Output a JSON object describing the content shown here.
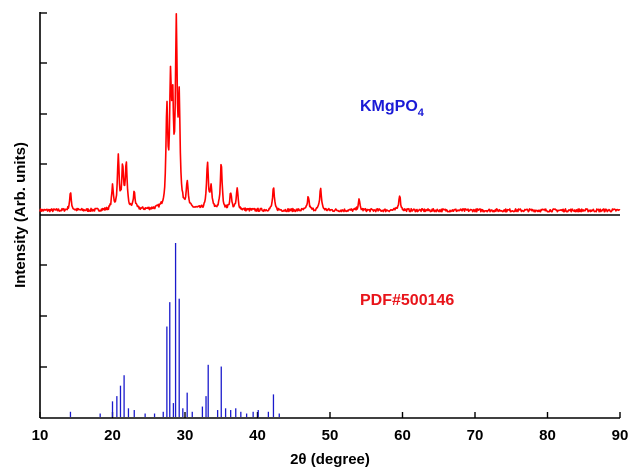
{
  "chart_data": {
    "type": "line",
    "xlabel": "2θ (degree)",
    "ylabel": "Intensity (Arb. units)",
    "xlim": [
      10,
      90
    ],
    "x_ticks": [
      "10",
      "20",
      "30",
      "40",
      "50",
      "60",
      "70",
      "80",
      "90"
    ],
    "grid": false,
    "annotations": {
      "top": {
        "text": "KMgPO",
        "sub": "4",
        "color": "#1a1ad6"
      },
      "bottom": {
        "text": "PDF#500146",
        "color": "#e8141a"
      }
    },
    "series": [
      {
        "name": "KMgPO4",
        "color": "#ff0000",
        "panel": "top",
        "peaks": [
          {
            "x": 14.2,
            "h": 0.1
          },
          {
            "x": 20.0,
            "h": 0.13
          },
          {
            "x": 20.8,
            "h": 0.3
          },
          {
            "x": 21.4,
            "h": 0.24
          },
          {
            "x": 21.9,
            "h": 0.26
          },
          {
            "x": 23.0,
            "h": 0.1
          },
          {
            "x": 27.5,
            "h": 0.56
          },
          {
            "x": 28.0,
            "h": 0.66
          },
          {
            "x": 28.3,
            "h": 0.52
          },
          {
            "x": 28.8,
            "h": 1.0
          },
          {
            "x": 29.2,
            "h": 0.58
          },
          {
            "x": 30.3,
            "h": 0.15
          },
          {
            "x": 33.1,
            "h": 0.27
          },
          {
            "x": 33.6,
            "h": 0.12
          },
          {
            "x": 35.0,
            "h": 0.27
          },
          {
            "x": 36.3,
            "h": 0.1
          },
          {
            "x": 37.2,
            "h": 0.12
          },
          {
            "x": 42.2,
            "h": 0.13
          },
          {
            "x": 47.0,
            "h": 0.08
          },
          {
            "x": 48.7,
            "h": 0.13
          },
          {
            "x": 54.0,
            "h": 0.06
          },
          {
            "x": 59.6,
            "h": 0.09
          }
        ]
      },
      {
        "name": "PDF#500146",
        "color": "#1a1acc",
        "panel": "bottom",
        "sticks": [
          {
            "x": 14.2,
            "h": 0.03
          },
          {
            "x": 18.3,
            "h": 0.02
          },
          {
            "x": 20.0,
            "h": 0.09
          },
          {
            "x": 20.6,
            "h": 0.12
          },
          {
            "x": 21.1,
            "h": 0.18
          },
          {
            "x": 21.6,
            "h": 0.24
          },
          {
            "x": 22.2,
            "h": 0.05
          },
          {
            "x": 23.0,
            "h": 0.04
          },
          {
            "x": 24.5,
            "h": 0.02
          },
          {
            "x": 25.8,
            "h": 0.02
          },
          {
            "x": 27.0,
            "h": 0.03
          },
          {
            "x": 27.5,
            "h": 0.52
          },
          {
            "x": 27.9,
            "h": 0.66
          },
          {
            "x": 28.4,
            "h": 0.08
          },
          {
            "x": 28.7,
            "h": 1.0
          },
          {
            "x": 29.2,
            "h": 0.68
          },
          {
            "x": 29.7,
            "h": 0.05
          },
          {
            "x": 30.3,
            "h": 0.14
          },
          {
            "x": 31.0,
            "h": 0.03
          },
          {
            "x": 32.4,
            "h": 0.06
          },
          {
            "x": 32.9,
            "h": 0.12
          },
          {
            "x": 33.2,
            "h": 0.3
          },
          {
            "x": 34.5,
            "h": 0.04
          },
          {
            "x": 35.0,
            "h": 0.29
          },
          {
            "x": 35.6,
            "h": 0.05
          },
          {
            "x": 36.3,
            "h": 0.04
          },
          {
            "x": 37.0,
            "h": 0.05
          },
          {
            "x": 37.7,
            "h": 0.03
          },
          {
            "x": 38.5,
            "h": 0.02
          },
          {
            "x": 39.4,
            "h": 0.03
          },
          {
            "x": 40.1,
            "h": 0.04
          },
          {
            "x": 41.5,
            "h": 0.03
          },
          {
            "x": 42.2,
            "h": 0.13
          },
          {
            "x": 43.0,
            "h": 0.02
          }
        ]
      }
    ]
  }
}
